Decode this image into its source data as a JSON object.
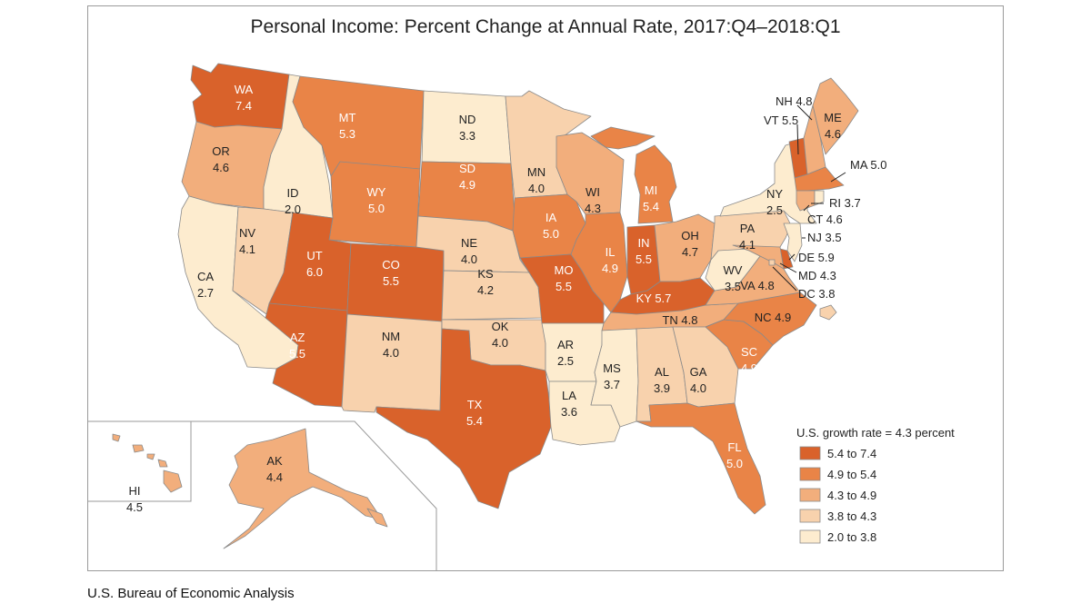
{
  "title": "Personal Income: Percent Change at Annual Rate, 2017:Q4–2018:Q1",
  "source": "U.S. Bureau of Economic Analysis",
  "colors": {
    "bin1": "#d9622b",
    "bin2": "#e98447",
    "bin3": "#f2ae7c",
    "bin4": "#f8d2ad",
    "bin5": "#fdeccf",
    "border": "#8a8a8a",
    "frame": "#9a9a9a"
  },
  "legend": {
    "title": "U.S. growth rate = 4.3 percent",
    "bins": [
      {
        "label": "5.4 to 7.4",
        "color_key": "bin1"
      },
      {
        "label": "4.9 to 5.4",
        "color_key": "bin2"
      },
      {
        "label": "4.3 to 4.9",
        "color_key": "bin3"
      },
      {
        "label": "3.8 to 4.3",
        "color_key": "bin4"
      },
      {
        "label": "2.0 to 3.8",
        "color_key": "bin5"
      }
    ]
  },
  "states": {
    "WA": {
      "abbr": "WA",
      "value": "7.4",
      "bin": 1
    },
    "OR": {
      "abbr": "OR",
      "value": "4.6",
      "bin": 3
    },
    "CA": {
      "abbr": "CA",
      "value": "2.7",
      "bin": 5
    },
    "ID": {
      "abbr": "ID",
      "value": "2.0",
      "bin": 5
    },
    "NV": {
      "abbr": "NV",
      "value": "4.1",
      "bin": 4
    },
    "MT": {
      "abbr": "MT",
      "value": "5.3",
      "bin": 2
    },
    "WY": {
      "abbr": "WY",
      "value": "5.0",
      "bin": 2
    },
    "UT": {
      "abbr": "UT",
      "value": "6.0",
      "bin": 1
    },
    "AZ": {
      "abbr": "AZ",
      "value": "5.5",
      "bin": 1
    },
    "CO": {
      "abbr": "CO",
      "value": "5.5",
      "bin": 1
    },
    "NM": {
      "abbr": "NM",
      "value": "4.0",
      "bin": 4
    },
    "ND": {
      "abbr": "ND",
      "value": "3.3",
      "bin": 5
    },
    "SD": {
      "abbr": "SD",
      "value": "4.9",
      "bin": 2
    },
    "NE": {
      "abbr": "NE",
      "value": "4.0",
      "bin": 4
    },
    "KS": {
      "abbr": "KS",
      "value": "4.2",
      "bin": 4
    },
    "OK": {
      "abbr": "OK",
      "value": "4.0",
      "bin": 4
    },
    "TX": {
      "abbr": "TX",
      "value": "5.4",
      "bin": 1
    },
    "MN": {
      "abbr": "MN",
      "value": "4.0",
      "bin": 4
    },
    "IA": {
      "abbr": "IA",
      "value": "5.0",
      "bin": 2
    },
    "MO": {
      "abbr": "MO",
      "value": "5.5",
      "bin": 1
    },
    "AR": {
      "abbr": "AR",
      "value": "2.5",
      "bin": 5
    },
    "LA": {
      "abbr": "LA",
      "value": "3.6",
      "bin": 5
    },
    "WI": {
      "abbr": "WI",
      "value": "4.3",
      "bin": 3
    },
    "IL": {
      "abbr": "IL",
      "value": "4.9",
      "bin": 2
    },
    "MI": {
      "abbr": "MI",
      "value": "5.4",
      "bin": 2
    },
    "IN": {
      "abbr": "IN",
      "value": "5.5",
      "bin": 1
    },
    "OH": {
      "abbr": "OH",
      "value": "4.7",
      "bin": 3
    },
    "KY": {
      "abbr": "KY",
      "value": "5.7",
      "bin": 1
    },
    "TN": {
      "abbr": "TN",
      "value": "4.8",
      "bin": 3
    },
    "MS": {
      "abbr": "MS",
      "value": "3.7",
      "bin": 5
    },
    "AL": {
      "abbr": "AL",
      "value": "3.9",
      "bin": 4
    },
    "GA": {
      "abbr": "GA",
      "value": "4.0",
      "bin": 4
    },
    "FL": {
      "abbr": "FL",
      "value": "5.0",
      "bin": 2
    },
    "SC": {
      "abbr": "SC",
      "value": "4.9",
      "bin": 2
    },
    "NC": {
      "abbr": "NC",
      "value": "4.9",
      "bin": 2
    },
    "VA": {
      "abbr": "VA",
      "value": "4.8",
      "bin": 3
    },
    "WV": {
      "abbr": "WV",
      "value": "3.5",
      "bin": 5
    },
    "PA": {
      "abbr": "PA",
      "value": "4.1",
      "bin": 4
    },
    "NY": {
      "abbr": "NY",
      "value": "2.5",
      "bin": 5
    },
    "ME": {
      "abbr": "ME",
      "value": "4.6",
      "bin": 3
    },
    "NH": {
      "abbr": "NH",
      "value": "4.8",
      "bin": 3
    },
    "VT": {
      "abbr": "VT",
      "value": "5.5",
      "bin": 1
    },
    "MA": {
      "abbr": "MA",
      "value": "5.0",
      "bin": 2
    },
    "RI": {
      "abbr": "RI",
      "value": "3.7",
      "bin": 5
    },
    "CT": {
      "abbr": "CT",
      "value": "4.6",
      "bin": 3
    },
    "NJ": {
      "abbr": "NJ",
      "value": "3.5",
      "bin": 5
    },
    "DE": {
      "abbr": "DE",
      "value": "5.9",
      "bin": 1
    },
    "MD": {
      "abbr": "MD",
      "value": "4.3",
      "bin": 3
    },
    "DC": {
      "abbr": "DC",
      "value": "3.8",
      "bin": 4
    },
    "AK": {
      "abbr": "AK",
      "value": "4.4",
      "bin": 3
    },
    "HI": {
      "abbr": "HI",
      "value": "4.5",
      "bin": 3
    }
  },
  "callouts": {
    "NH": "NH 4.8",
    "VT": "VT 5.5",
    "MA": "MA 5.0",
    "RI": "RI 3.7",
    "CT": "CT 4.6",
    "NJ": "NJ 3.5",
    "DE": "DE 5.9",
    "MD": "MD 4.3",
    "DC": "DC 3.8",
    "KY": "KY 5.7",
    "TN": "TN 4.8",
    "NC": "NC 4.9",
    "VA": "VA 4.8"
  }
}
